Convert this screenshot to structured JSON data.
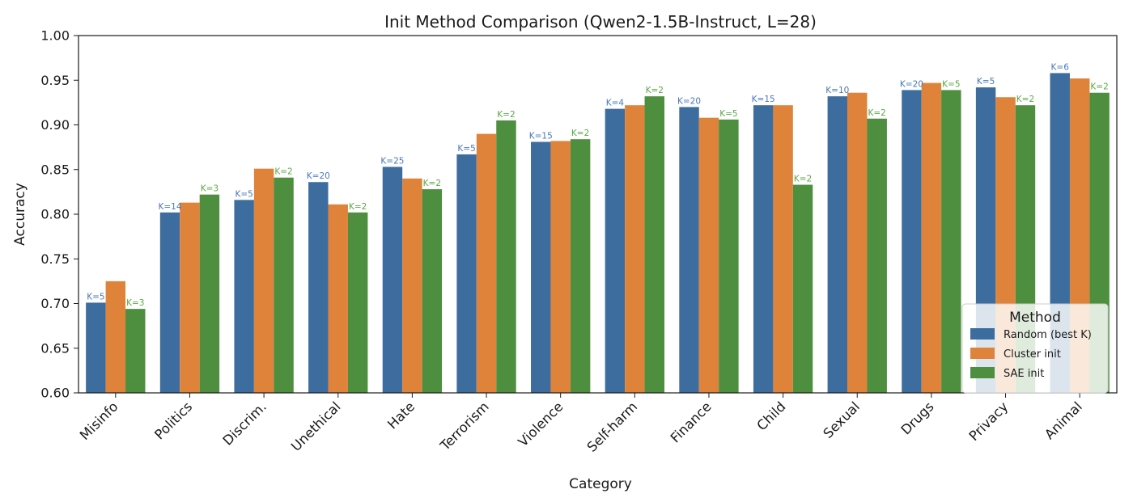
{
  "chart_data": {
    "type": "bar",
    "title": "Init Method Comparison (Qwen2-1.5B-Instruct, L=28)",
    "xlabel": "Category",
    "ylabel": "Accuracy",
    "ylim": [
      0.6,
      1.0
    ],
    "yticks": [
      "0.60",
      "0.65",
      "0.70",
      "0.75",
      "0.80",
      "0.85",
      "0.90",
      "0.95",
      "1.00"
    ],
    "grid": false,
    "categories": [
      "Misinfo",
      "Politics",
      "Discrim.",
      "Unethical",
      "Hate",
      "Terrorism",
      "Violence",
      "Self-harm",
      "Finance",
      "Child",
      "Sexual",
      "Drugs",
      "Privacy",
      "Animal"
    ],
    "series": [
      {
        "name": "Random (best K)",
        "color": "#3d6d9e",
        "label_color": "#4a78b8",
        "values": [
          0.701,
          0.802,
          0.816,
          0.836,
          0.853,
          0.867,
          0.881,
          0.918,
          0.92,
          0.922,
          0.932,
          0.939,
          0.942,
          0.958
        ],
        "labels": [
          "K=5",
          "K=14",
          "K=5",
          "K=20",
          "K=25",
          "K=5",
          "K=15",
          "K=4",
          "K=20",
          "K=15",
          "K=10",
          "K=20",
          "K=5",
          "K=6"
        ]
      },
      {
        "name": "Cluster init",
        "color": "#e0833a",
        "values": [
          0.725,
          0.813,
          0.851,
          0.811,
          0.84,
          0.89,
          0.882,
          0.922,
          0.908,
          0.922,
          0.936,
          0.947,
          0.931,
          0.952
        ]
      },
      {
        "name": "SAE init",
        "color": "#4e8f3f",
        "label_color": "#5aa845",
        "values": [
          0.694,
          0.822,
          0.841,
          0.802,
          0.828,
          0.905,
          0.884,
          0.932,
          0.906,
          0.833,
          0.907,
          0.939,
          0.922,
          0.936
        ],
        "labels": [
          "K=3",
          "K=3",
          "K=2",
          "K=2",
          "K=2",
          "K=2",
          "K=2",
          "K=2",
          "K=5",
          "K=2",
          "K=2",
          "K=5",
          "K=2",
          "K=2"
        ]
      }
    ],
    "legend": {
      "title": "Method",
      "placement": "lower right"
    }
  }
}
